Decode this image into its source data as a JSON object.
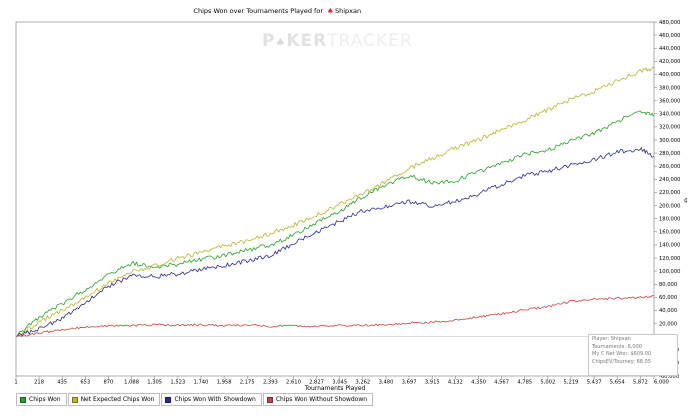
{
  "chart_data": {
    "type": "line",
    "title": "Chips Won over Tournaments Played for",
    "player_icon": "pokerstars-spade-icon",
    "player": "Shipxan",
    "xlabel": "Tournaments Played",
    "ylabel": "",
    "x_ticks": [
      "1",
      "218",
      "435",
      "653",
      "870",
      "1,088",
      "1,305",
      "1,523",
      "1,740",
      "1,958",
      "2,175",
      "2,393",
      "2,610",
      "2,827",
      "3,045",
      "3,262",
      "3,480",
      "3,697",
      "3,915",
      "4,132",
      "4,350",
      "4,567",
      "4,785",
      "5,002",
      "5,219",
      "5,437",
      "5,654",
      "5,872",
      "6,000"
    ],
    "y_ticks": [
      "480,000",
      "460,000",
      "440,000",
      "420,000",
      "400,000",
      "380,000",
      "360,000",
      "340,000",
      "320,000",
      "300,000",
      "280,000",
      "260,000",
      "240,000",
      "220,000",
      "200,000",
      "180,000",
      "160,000",
      "140,000",
      "120,000",
      "100,000",
      "80,000",
      "60,000",
      "40,000",
      "20,000",
      "0",
      "-20,000",
      "-40,000",
      "-60,000"
    ],
    "xlim": [
      1,
      6000
    ],
    "ylim": [
      -60000,
      480000
    ],
    "grid": false,
    "legend_position": "bottom-left",
    "series": [
      {
        "name": "Chips Won",
        "color": "#2a9e2a",
        "x": [
          1,
          218,
          435,
          653,
          870,
          1088,
          1305,
          1523,
          1740,
          1958,
          2175,
          2393,
          2610,
          2827,
          3045,
          3262,
          3480,
          3697,
          3915,
          4132,
          4350,
          4567,
          4785,
          5002,
          5219,
          5437,
          5654,
          5872,
          6000
        ],
        "values": [
          0,
          30000,
          50000,
          72000,
          95000,
          112000,
          106000,
          110000,
          118000,
          124000,
          132000,
          140000,
          155000,
          174000,
          192000,
          213000,
          232000,
          246000,
          234000,
          238000,
          252000,
          264000,
          278000,
          285000,
          300000,
          310000,
          328000,
          344000,
          338000
        ]
      },
      {
        "name": "Net Expected Chips Won",
        "color": "#b5b534",
        "x": [
          1,
          218,
          435,
          653,
          870,
          1088,
          1305,
          1523,
          1740,
          1958,
          2175,
          2393,
          2610,
          2827,
          3045,
          3262,
          3480,
          3697,
          3915,
          4132,
          4350,
          4567,
          4785,
          5002,
          5219,
          5437,
          5654,
          5872,
          6000
        ],
        "values": [
          0,
          22000,
          40000,
          60000,
          82000,
          98000,
          108000,
          120000,
          128000,
          138000,
          146000,
          158000,
          170000,
          185000,
          202000,
          218000,
          236000,
          256000,
          272000,
          288000,
          300000,
          316000,
          330000,
          346000,
          362000,
          374000,
          390000,
          404000,
          410000
        ]
      },
      {
        "name": "Chips Won With Showdown",
        "color": "#2b2b8f",
        "x": [
          1,
          218,
          435,
          653,
          870,
          1088,
          1305,
          1523,
          1740,
          1958,
          2175,
          2393,
          2610,
          2827,
          3045,
          3262,
          3480,
          3697,
          3915,
          4132,
          4350,
          4567,
          4785,
          5002,
          5219,
          5437,
          5654,
          5872,
          6000
        ],
        "values": [
          0,
          12000,
          28000,
          52000,
          76000,
          93000,
          92000,
          96000,
          102000,
          108000,
          116000,
          124000,
          142000,
          160000,
          176000,
          192000,
          198000,
          206000,
          200000,
          206000,
          218000,
          232000,
          246000,
          252000,
          262000,
          270000,
          282000,
          286000,
          275000
        ]
      },
      {
        "name": "Chips Won Without Showdown",
        "color": "#c04646",
        "x": [
          1,
          218,
          435,
          653,
          870,
          1088,
          1305,
          1523,
          1740,
          1958,
          2175,
          2393,
          2610,
          2827,
          3045,
          3262,
          3480,
          3697,
          3915,
          4132,
          4350,
          4567,
          4785,
          5002,
          5219,
          5437,
          5654,
          5872,
          6000
        ],
        "values": [
          0,
          6000,
          10000,
          15000,
          17000,
          17000,
          18000,
          18000,
          18000,
          17000,
          18000,
          16000,
          17000,
          16000,
          17000,
          17000,
          18000,
          21000,
          22000,
          25000,
          30000,
          35000,
          41000,
          46000,
          54000,
          58000,
          58000,
          60000,
          62000
        ]
      }
    ],
    "stats": {
      "player_line": "Player: Shipxan",
      "tournaments_line": "Tournaments: 6,000",
      "net_won_line": "My C Net Won: $609.00",
      "ev_line": "ChipsEV/Tourney: 68.05"
    },
    "watermark": {
      "part1": "P",
      "part2": "KER",
      "part3": "TRACKER"
    }
  }
}
